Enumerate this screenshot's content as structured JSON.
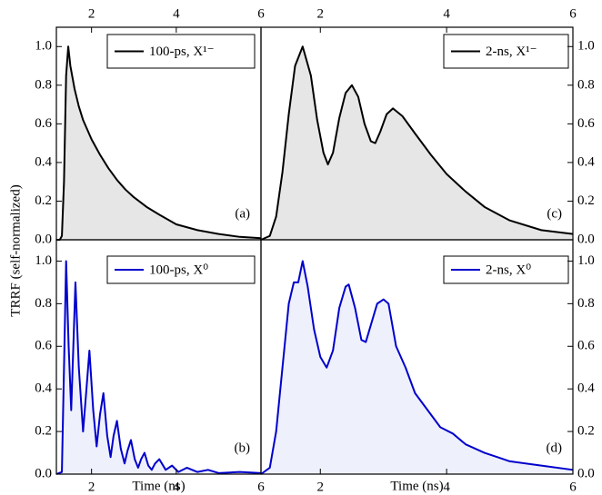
{
  "ylabel": "TRRF (self-normalized)",
  "chart_data": [
    {
      "type": "line",
      "panel": "(a)",
      "legend": "upper right",
      "fill": "#e6e6e6",
      "yaxis_side": "left",
      "xlim": [
        1.17,
        6
      ],
      "ylim": [
        0,
        1.1
      ],
      "x2ticks": [
        2,
        4,
        6
      ],
      "yticks": [
        {
          "value": 0,
          "label": "0.0"
        },
        {
          "value": 0.2,
          "label": "0.2"
        },
        {
          "value": 0.4,
          "label": "0.4"
        },
        {
          "value": 0.6,
          "label": "0.6"
        },
        {
          "value": 0.8,
          "label": "0.8"
        },
        {
          "value": 1,
          "label": "1.0"
        }
      ],
      "x": [
        1.17,
        1.25,
        1.3,
        1.35,
        1.4,
        1.45,
        1.5,
        1.6,
        1.7,
        1.8,
        1.9,
        2.0,
        2.2,
        2.4,
        2.6,
        2.8,
        3.0,
        3.3,
        3.6,
        4.0,
        4.5,
        5.0,
        5.5,
        6.0
      ],
      "series": [
        {
          "name": "100-ps, X¹⁻",
          "color": "#000000",
          "values": [
            0,
            0,
            0.02,
            0.3,
            0.85,
            1.0,
            0.9,
            0.78,
            0.69,
            0.62,
            0.57,
            0.52,
            0.44,
            0.37,
            0.31,
            0.26,
            0.22,
            0.17,
            0.13,
            0.08,
            0.05,
            0.03,
            0.015,
            0.008
          ]
        }
      ]
    },
    {
      "type": "line",
      "panel": "(b)",
      "legend": "upper right",
      "fill": "#eef0fb",
      "yaxis_side": "left",
      "xlim": [
        1.17,
        6
      ],
      "ylim": [
        0,
        1.1
      ],
      "xticks": [
        2,
        4,
        6
      ],
      "xlabel": "Time (ns)",
      "yticks": [
        {
          "value": 0,
          "label": "0.0"
        },
        {
          "value": 0.2,
          "label": "0.2"
        },
        {
          "value": 0.4,
          "label": "0.4"
        },
        {
          "value": 0.6,
          "label": "0.6"
        },
        {
          "value": 0.8,
          "label": "0.8"
        },
        {
          "value": 1,
          "label": "1.0"
        }
      ],
      "x": [
        1.17,
        1.3,
        1.36,
        1.4,
        1.46,
        1.52,
        1.57,
        1.62,
        1.7,
        1.8,
        1.88,
        1.95,
        2.04,
        2.12,
        2.2,
        2.28,
        2.37,
        2.45,
        2.52,
        2.6,
        2.69,
        2.78,
        2.85,
        2.93,
        3.02,
        3.1,
        3.17,
        3.25,
        3.34,
        3.42,
        3.5,
        3.6,
        3.75,
        3.9,
        4.05,
        4.25,
        4.5,
        4.75,
        5.0,
        5.5,
        6.0
      ],
      "series": [
        {
          "name": "100-ps, X⁰",
          "color": "#0000cc",
          "values": [
            0,
            0.01,
            0.6,
            1.0,
            0.6,
            0.3,
            0.6,
            0.9,
            0.5,
            0.2,
            0.4,
            0.58,
            0.3,
            0.13,
            0.28,
            0.38,
            0.18,
            0.08,
            0.18,
            0.25,
            0.12,
            0.05,
            0.11,
            0.16,
            0.07,
            0.03,
            0.07,
            0.1,
            0.04,
            0.02,
            0.05,
            0.07,
            0.02,
            0.04,
            0.01,
            0.03,
            0.01,
            0.02,
            0.005,
            0.01,
            0.005
          ]
        }
      ]
    },
    {
      "type": "line",
      "panel": "(c)",
      "legend": "upper right",
      "fill": "#e6e6e6",
      "yaxis_side": "right",
      "xlim": [
        1.06,
        6
      ],
      "ylim": [
        0,
        1.1
      ],
      "x2ticks": [
        2,
        4,
        6
      ],
      "yticks": [
        {
          "value": 0,
          "label": "0.0"
        },
        {
          "value": 0.2,
          "label": "0.2"
        },
        {
          "value": 0.4,
          "label": "0.4"
        },
        {
          "value": 0.6,
          "label": "0.6"
        },
        {
          "value": 0.8,
          "label": "0.8"
        },
        {
          "value": 1,
          "label": "1.0"
        }
      ],
      "x": [
        1.06,
        1.2,
        1.3,
        1.4,
        1.5,
        1.6,
        1.72,
        1.85,
        1.95,
        2.05,
        2.12,
        2.2,
        2.3,
        2.4,
        2.5,
        2.6,
        2.7,
        2.8,
        2.87,
        2.95,
        3.05,
        3.15,
        3.3,
        3.5,
        3.75,
        4.0,
        4.3,
        4.6,
        5.0,
        5.5,
        6.0
      ],
      "series": [
        {
          "name": "2-ns, X¹⁻",
          "color": "#000000",
          "values": [
            0,
            0.02,
            0.12,
            0.35,
            0.65,
            0.9,
            1.0,
            0.85,
            0.62,
            0.45,
            0.39,
            0.45,
            0.63,
            0.76,
            0.8,
            0.74,
            0.6,
            0.51,
            0.5,
            0.56,
            0.65,
            0.68,
            0.64,
            0.55,
            0.44,
            0.34,
            0.25,
            0.17,
            0.1,
            0.05,
            0.03
          ]
        }
      ]
    },
    {
      "type": "line",
      "panel": "(d)",
      "legend": "upper right",
      "fill": "#eef0fb",
      "yaxis_side": "right",
      "xlim": [
        1.06,
        6
      ],
      "ylim": [
        0,
        1.1
      ],
      "xticks": [
        2,
        4,
        6
      ],
      "xlabel": "Time (ns)",
      "yticks": [
        {
          "value": 0,
          "label": "0.0"
        },
        {
          "value": 0.2,
          "label": "0.2"
        },
        {
          "value": 0.4,
          "label": "0.4"
        },
        {
          "value": 0.6,
          "label": "0.6"
        },
        {
          "value": 0.8,
          "label": "0.8"
        },
        {
          "value": 1,
          "label": "1.0"
        }
      ],
      "x": [
        1.06,
        1.2,
        1.3,
        1.4,
        1.5,
        1.58,
        1.65,
        1.72,
        1.8,
        1.9,
        2.0,
        2.1,
        2.2,
        2.3,
        2.4,
        2.45,
        2.55,
        2.65,
        2.72,
        2.8,
        2.9,
        3.0,
        3.08,
        3.2,
        3.35,
        3.5,
        3.7,
        3.9,
        4.1,
        4.3,
        4.6,
        4.8,
        5.0,
        5.5,
        6.0
      ],
      "series": [
        {
          "name": "2-ns, X⁰",
          "color": "#0000cc",
          "values": [
            0,
            0.03,
            0.2,
            0.5,
            0.8,
            0.9,
            0.9,
            1.0,
            0.88,
            0.68,
            0.55,
            0.5,
            0.58,
            0.78,
            0.88,
            0.89,
            0.78,
            0.63,
            0.62,
            0.7,
            0.8,
            0.82,
            0.8,
            0.6,
            0.5,
            0.38,
            0.3,
            0.22,
            0.19,
            0.14,
            0.1,
            0.08,
            0.06,
            0.04,
            0.02
          ]
        }
      ]
    }
  ]
}
